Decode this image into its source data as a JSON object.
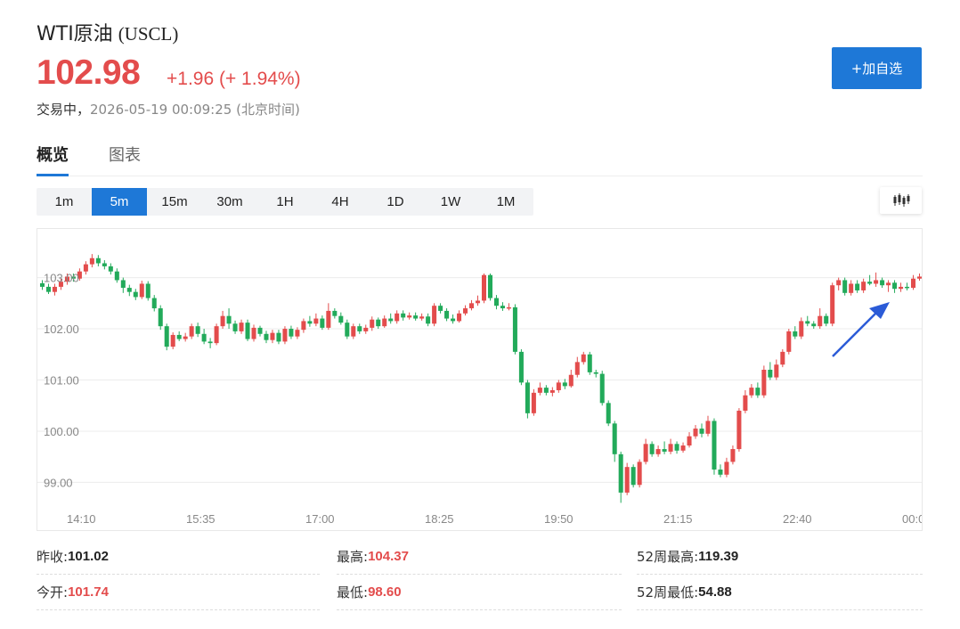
{
  "header": {
    "name": "WTI原油",
    "code": "(USCL)",
    "price": "102.98",
    "change": "+1.96 (+ 1.94%)",
    "status": "交易中，",
    "timestamp": "2026-05-19 00:09:25 (北京时间)"
  },
  "follow_button": "+加自选",
  "tabs": [
    {
      "label": "概览"
    },
    {
      "label": "图表"
    }
  ],
  "periods": [
    {
      "label": "1m"
    },
    {
      "label": "5m"
    },
    {
      "label": "15m"
    },
    {
      "label": "30m"
    },
    {
      "label": "1H"
    },
    {
      "label": "4H"
    },
    {
      "label": "1D"
    },
    {
      "label": "1W"
    },
    {
      "label": "1M"
    }
  ],
  "active_period": "5m",
  "colors": {
    "up": "#e34c4c",
    "down": "#22aa5a",
    "accent": "#1e78d7"
  },
  "chart_data": {
    "type": "candlestick",
    "x_tick_labels": [
      "14:10",
      "15:35",
      "17:00",
      "18:25",
      "19:50",
      "21:15",
      "22:40",
      "00:0"
    ],
    "y_ticks": [
      99.0,
      100.0,
      101.0,
      102.0,
      103.0
    ],
    "y_tick_labels": [
      "99.00",
      "100.00",
      "101.00",
      "102.00",
      "103.00"
    ],
    "ylim": [
      98.45,
      103.95
    ],
    "grid": true,
    "annotation": "arrow",
    "candles": [
      [
        102.89,
        102.82,
        102.95,
        102.76
      ],
      [
        102.82,
        102.72,
        102.88,
        102.68
      ],
      [
        102.72,
        102.82,
        102.88,
        102.65
      ],
      [
        102.82,
        102.92,
        102.98,
        102.76
      ],
      [
        102.92,
        103.02,
        103.08,
        102.86
      ],
      [
        103.02,
        102.98,
        103.08,
        102.92
      ],
      [
        102.98,
        103.12,
        103.18,
        102.94
      ],
      [
        103.12,
        103.26,
        103.32,
        103.06
      ],
      [
        103.26,
        103.38,
        103.46,
        103.2
      ],
      [
        103.38,
        103.28,
        103.44,
        103.22
      ],
      [
        103.28,
        103.22,
        103.34,
        103.16
      ],
      [
        103.22,
        103.12,
        103.28,
        103.06
      ],
      [
        103.12,
        102.95,
        103.18,
        102.9
      ],
      [
        102.95,
        102.8,
        103.0,
        102.7
      ],
      [
        102.8,
        102.72,
        102.86,
        102.64
      ],
      [
        102.72,
        102.62,
        102.78,
        102.56
      ],
      [
        102.62,
        102.88,
        102.94,
        102.58
      ],
      [
        102.88,
        102.6,
        102.93,
        102.55
      ],
      [
        102.6,
        102.4,
        102.66,
        102.34
      ],
      [
        102.4,
        102.05,
        102.46,
        101.98
      ],
      [
        102.05,
        101.65,
        102.1,
        101.58
      ],
      [
        101.65,
        101.88,
        101.93,
        101.6
      ],
      [
        101.88,
        101.8,
        101.95,
        101.76
      ],
      [
        101.8,
        101.85,
        101.92,
        101.75
      ],
      [
        101.85,
        102.05,
        102.1,
        101.8
      ],
      [
        102.05,
        101.9,
        102.12,
        101.84
      ],
      [
        101.9,
        101.75,
        102.0,
        101.7
      ],
      [
        101.75,
        101.72,
        101.82,
        101.62
      ],
      [
        101.72,
        102.05,
        102.1,
        101.68
      ],
      [
        102.05,
        102.25,
        102.35,
        102.0
      ],
      [
        102.25,
        102.1,
        102.4,
        102.0
      ],
      [
        102.1,
        101.95,
        102.16,
        101.9
      ],
      [
        101.95,
        102.12,
        102.18,
        101.9
      ],
      [
        102.12,
        101.8,
        102.18,
        101.76
      ],
      [
        101.8,
        102.02,
        102.08,
        101.75
      ],
      [
        102.02,
        101.9,
        102.06,
        101.85
      ],
      [
        101.9,
        101.78,
        101.96,
        101.72
      ],
      [
        101.78,
        101.92,
        101.98,
        101.72
      ],
      [
        101.92,
        101.75,
        101.98,
        101.7
      ],
      [
        101.75,
        102.0,
        102.05,
        101.7
      ],
      [
        102.0,
        101.85,
        102.06,
        101.8
      ],
      [
        101.85,
        101.98,
        102.03,
        101.8
      ],
      [
        101.98,
        102.15,
        102.2,
        101.92
      ],
      [
        102.15,
        102.1,
        102.25,
        102.04
      ],
      [
        102.1,
        102.2,
        102.3,
        102.05
      ],
      [
        102.2,
        102.02,
        102.26,
        101.98
      ],
      [
        102.02,
        102.35,
        102.5,
        101.98
      ],
      [
        102.35,
        102.25,
        102.4,
        102.2
      ],
      [
        102.25,
        102.12,
        102.32,
        102.08
      ],
      [
        102.12,
        101.85,
        102.18,
        101.8
      ],
      [
        101.85,
        102.05,
        102.1,
        101.8
      ],
      [
        102.05,
        101.95,
        102.1,
        101.9
      ],
      [
        101.95,
        102.02,
        102.08,
        101.9
      ],
      [
        102.02,
        102.18,
        102.24,
        101.96
      ],
      [
        102.18,
        102.05,
        102.22,
        102.0
      ],
      [
        102.05,
        102.2,
        102.26,
        102.02
      ],
      [
        102.2,
        102.15,
        102.3,
        102.1
      ],
      [
        102.15,
        102.3,
        102.36,
        102.1
      ],
      [
        102.3,
        102.22,
        102.36,
        102.16
      ],
      [
        102.22,
        102.26,
        102.32,
        102.18
      ],
      [
        102.26,
        102.2,
        102.32,
        102.16
      ],
      [
        102.2,
        102.24,
        102.3,
        102.16
      ],
      [
        102.24,
        102.1,
        102.3,
        102.05
      ],
      [
        102.1,
        102.45,
        102.5,
        102.05
      ],
      [
        102.45,
        102.35,
        102.5,
        102.3
      ],
      [
        102.35,
        102.2,
        102.4,
        102.15
      ],
      [
        102.2,
        102.15,
        102.28,
        102.1
      ],
      [
        102.15,
        102.3,
        102.36,
        102.12
      ],
      [
        102.3,
        102.4,
        102.46,
        102.26
      ],
      [
        102.4,
        102.5,
        102.56,
        102.36
      ],
      [
        102.5,
        102.55,
        102.65,
        102.45
      ],
      [
        102.55,
        103.05,
        103.08,
        102.5
      ],
      [
        103.05,
        102.6,
        103.08,
        102.55
      ],
      [
        102.6,
        102.45,
        102.66,
        102.38
      ],
      [
        102.45,
        102.4,
        102.52,
        102.35
      ],
      [
        102.4,
        102.42,
        102.5,
        102.36
      ],
      [
        102.42,
        101.55,
        102.48,
        101.5
      ],
      [
        101.55,
        100.95,
        101.6,
        100.9
      ],
      [
        100.95,
        100.35,
        101.0,
        100.25
      ],
      [
        100.35,
        100.75,
        100.82,
        100.3
      ],
      [
        100.75,
        100.85,
        100.95,
        100.7
      ],
      [
        100.85,
        100.75,
        100.9,
        100.7
      ],
      [
        100.75,
        100.8,
        100.86,
        100.68
      ],
      [
        100.8,
        100.95,
        101.0,
        100.75
      ],
      [
        100.95,
        100.88,
        101.02,
        100.82
      ],
      [
        100.88,
        101.1,
        101.2,
        100.85
      ],
      [
        101.1,
        101.35,
        101.45,
        101.05
      ],
      [
        101.35,
        101.5,
        101.55,
        101.3
      ],
      [
        101.5,
        101.15,
        101.55,
        101.1
      ],
      [
        101.15,
        101.12,
        101.2,
        101.05
      ],
      [
        101.12,
        100.55,
        101.18,
        100.5
      ],
      [
        100.55,
        100.15,
        100.6,
        100.1
      ],
      [
        100.15,
        99.55,
        100.2,
        99.4
      ],
      [
        99.55,
        98.8,
        99.6,
        98.6
      ],
      [
        98.8,
        99.3,
        99.38,
        98.75
      ],
      [
        99.3,
        98.95,
        99.35,
        98.9
      ],
      [
        98.95,
        99.4,
        99.45,
        98.9
      ],
      [
        99.4,
        99.75,
        99.85,
        99.35
      ],
      [
        99.75,
        99.55,
        99.8,
        99.5
      ],
      [
        99.55,
        99.65,
        99.72,
        99.5
      ],
      [
        99.65,
        99.6,
        99.8,
        99.55
      ],
      [
        99.6,
        99.75,
        99.85,
        99.55
      ],
      [
        99.75,
        99.62,
        99.8,
        99.56
      ],
      [
        99.62,
        99.72,
        99.78,
        99.58
      ],
      [
        99.72,
        99.9,
        99.98,
        99.68
      ],
      [
        99.9,
        100.05,
        100.12,
        99.85
      ],
      [
        100.05,
        99.95,
        100.15,
        99.88
      ],
      [
        99.95,
        100.2,
        100.3,
        99.9
      ],
      [
        100.2,
        99.25,
        100.25,
        99.15
      ],
      [
        99.25,
        99.15,
        99.35,
        99.1
      ],
      [
        99.15,
        99.4,
        99.48,
        99.1
      ],
      [
        99.4,
        99.65,
        99.72,
        99.35
      ],
      [
        99.65,
        100.4,
        100.45,
        99.6
      ],
      [
        100.4,
        100.7,
        100.8,
        100.35
      ],
      [
        100.7,
        100.85,
        100.92,
        100.65
      ],
      [
        100.85,
        100.7,
        100.95,
        100.65
      ],
      [
        100.7,
        101.2,
        101.28,
        100.65
      ],
      [
        101.2,
        101.05,
        101.35,
        101.0
      ],
      [
        101.05,
        101.3,
        101.4,
        101.0
      ],
      [
        101.3,
        101.55,
        101.6,
        101.25
      ],
      [
        101.55,
        101.95,
        102.0,
        101.5
      ],
      [
        101.95,
        101.85,
        102.05,
        101.8
      ],
      [
        101.85,
        102.15,
        102.22,
        101.8
      ],
      [
        102.15,
        102.1,
        102.25,
        102.05
      ],
      [
        102.1,
        102.05,
        102.15,
        102.0
      ],
      [
        102.05,
        102.25,
        102.4,
        102.0
      ],
      [
        102.25,
        102.1,
        102.3,
        102.05
      ],
      [
        102.1,
        102.85,
        102.9,
        102.05
      ],
      [
        102.85,
        102.95,
        103.0,
        102.75
      ],
      [
        102.95,
        102.7,
        103.0,
        102.65
      ],
      [
        102.7,
        102.88,
        102.95,
        102.65
      ],
      [
        102.88,
        102.75,
        102.95,
        102.7
      ],
      [
        102.75,
        102.92,
        102.98,
        102.7
      ],
      [
        102.92,
        102.88,
        103.05,
        102.85
      ],
      [
        102.88,
        102.95,
        103.1,
        102.82
      ],
      [
        102.95,
        102.85,
        103.0,
        102.8
      ],
      [
        102.85,
        102.9,
        102.95,
        102.72
      ],
      [
        102.9,
        102.78,
        102.95,
        102.7
      ],
      [
        102.78,
        102.82,
        102.9,
        102.72
      ],
      [
        102.82,
        102.8,
        102.9,
        102.75
      ],
      [
        102.8,
        102.98,
        103.05,
        102.76
      ],
      [
        102.98,
        103.02,
        103.08,
        102.94
      ]
    ]
  },
  "stats": {
    "prev_close": {
      "label": "昨收:",
      "value": "101.02"
    },
    "high": {
      "label": "最高:",
      "value": "104.37"
    },
    "week52_high": {
      "label": "52周最高:",
      "value": "119.39"
    },
    "open": {
      "label": "今开:",
      "value": "101.74"
    },
    "low": {
      "label": "最低:",
      "value": "98.60"
    },
    "week52_low": {
      "label": "52周最低:",
      "value": "54.88"
    }
  }
}
